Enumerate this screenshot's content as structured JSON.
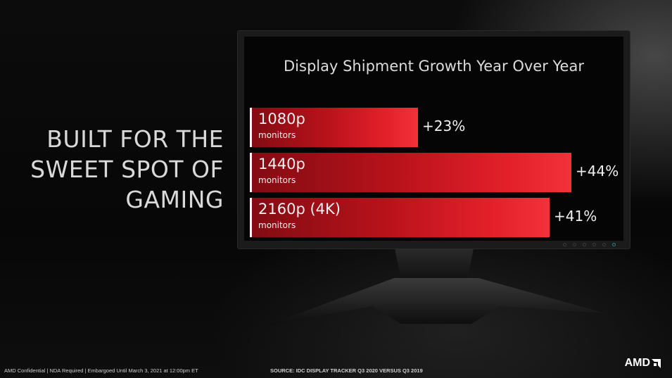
{
  "headline": {
    "lines": [
      "BUILT FOR THE",
      "SWEET SPOT OF",
      "GAMING"
    ]
  },
  "chart_data": {
    "type": "bar",
    "orientation": "horizontal",
    "title": "Display Shipment Growth Year Over Year",
    "categories": [
      "1080p",
      "1440p",
      "2160p (4K)"
    ],
    "subtitles": [
      "monitors",
      "monitors",
      "monitors"
    ],
    "values": [
      23,
      44,
      41
    ],
    "value_labels": [
      "+23%",
      "+44%",
      "+41%"
    ],
    "unit": "%",
    "xlim": [
      0,
      44
    ],
    "grid": false,
    "colors": {
      "bar": "#e3202a",
      "bar_dark": "#820c12"
    }
  },
  "footer": {
    "confidential": "AMD Confidential | NDA Required | Embargoed Until March 3, 2021 at 12:00pm ET",
    "source": "SOURCE: IDC DISPLAY TRACKER Q3 2020 VERSUS Q3 2019",
    "logo": "AMD"
  }
}
